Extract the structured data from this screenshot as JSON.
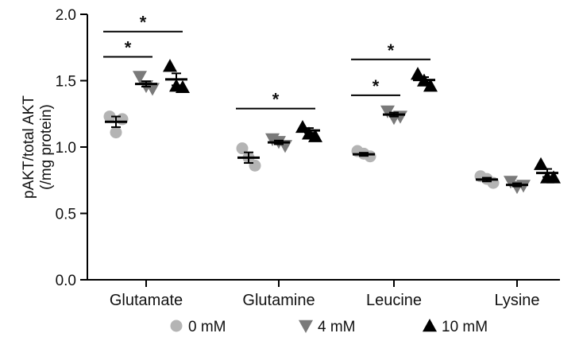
{
  "chart_data": {
    "type": "scatter",
    "ylabel": "pAKT/total AKT",
    "ylabel2": "(/mg protein)",
    "ylim": [
      0,
      2.0
    ],
    "yticks": [
      "0.0",
      "0.5",
      "1.0",
      "1.5",
      "2.0"
    ],
    "ytick_values": [
      0,
      0.5,
      1.0,
      1.5,
      2.0
    ],
    "categories": [
      "Glutamate",
      "Glutamine",
      "Leucine",
      "Lysine"
    ],
    "series": [
      {
        "name": "0 mM",
        "marker": "circle",
        "color": "#b4b4b4",
        "points": [
          [
            1.23,
            1.21,
            1.11
          ],
          [
            0.99,
            0.86,
            0.92
          ],
          [
            0.97,
            0.93,
            0.95
          ],
          [
            0.78,
            0.73,
            0.76
          ]
        ],
        "mean": [
          1.19,
          0.92,
          0.945,
          0.755
        ],
        "sem": [
          0.04,
          0.04,
          0.012,
          0.014
        ]
      },
      {
        "name": "4 mM",
        "marker": "triangle-down",
        "color": "#7a7a7a",
        "points": [
          [
            1.53,
            1.44,
            1.46
          ],
          [
            1.06,
            1.01,
            1.04
          ],
          [
            1.27,
            1.23,
            1.22
          ],
          [
            0.74,
            0.71,
            0.7
          ]
        ],
        "mean": [
          1.475,
          1.035,
          1.245,
          0.715
        ],
        "sem": [
          0.02,
          0.014,
          0.015,
          0.012
        ]
      },
      {
        "name": "10 mM",
        "marker": "triangle-up",
        "color": "#000000",
        "points": [
          [
            1.61,
            1.45,
            1.46
          ],
          [
            1.15,
            1.08,
            1.1
          ],
          [
            1.55,
            1.46,
            1.5
          ],
          [
            0.87,
            0.77,
            0.77
          ]
        ],
        "mean": [
          1.51,
          1.125,
          1.505,
          0.805
        ],
        "sem": [
          0.045,
          0.018,
          0.022,
          0.03
        ]
      }
    ],
    "annotations": [
      {
        "text": "*",
        "category": 0,
        "from": "0 mM",
        "to": "4 mM",
        "level": 1.68
      },
      {
        "text": "*",
        "category": 0,
        "from": "0 mM",
        "to": "10 mM",
        "level": 1.87
      },
      {
        "text": "*",
        "category": 1,
        "from": "0 mM",
        "to": "10 mM",
        "level": 1.29
      },
      {
        "text": "*",
        "category": 2,
        "from": "0 mM",
        "to": "4 mM",
        "level": 1.39
      },
      {
        "text": "*",
        "category": 2,
        "from": "0 mM",
        "to": "10 mM",
        "level": 1.66
      }
    ],
    "legend_position": "bottom",
    "grid": false
  }
}
